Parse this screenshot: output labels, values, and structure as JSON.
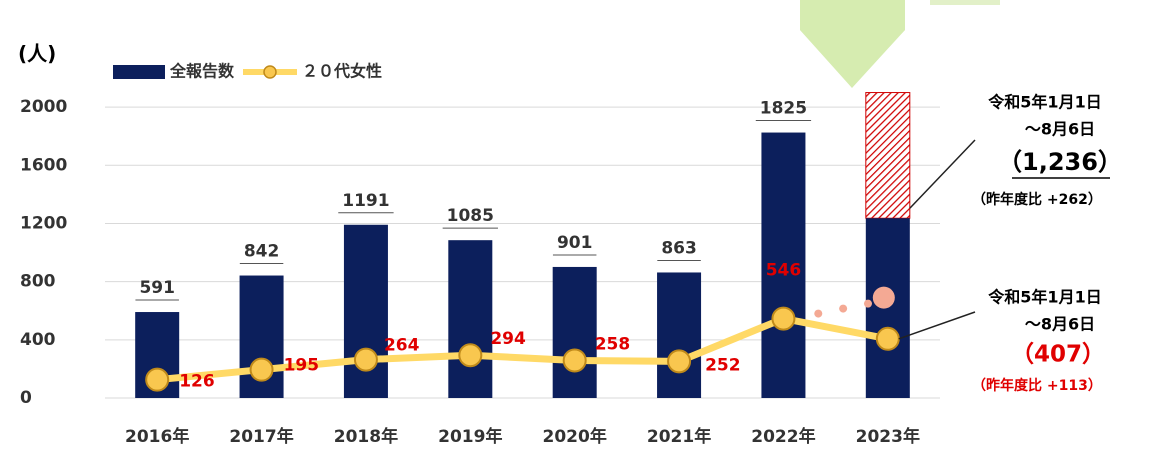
{
  "chart_data": {
    "type": "bar_line",
    "y_label": "(人)",
    "categories": [
      "2016年",
      "2017年",
      "2018年",
      "2019年",
      "2020年",
      "2021年",
      "2022年",
      "2023年"
    ],
    "series": [
      {
        "name": "全報告数",
        "type": "bar",
        "color": "#0c1f5c",
        "values": [
          591,
          842,
          1191,
          1085,
          901,
          863,
          1825,
          1236
        ],
        "value_labels": [
          "591",
          "842",
          "1191",
          "1085",
          "901",
          "863",
          "1825",
          "（1,236）"
        ],
        "projected": [
          null,
          null,
          null,
          null,
          null,
          null,
          null,
          2100
        ]
      },
      {
        "name": "２０代女性",
        "type": "line",
        "color": "#ffd966",
        "values": [
          126,
          195,
          264,
          294,
          258,
          252,
          546,
          407
        ],
        "value_labels": [
          "126",
          "195",
          "264",
          "294",
          "258",
          "252",
          "546",
          "（407）"
        ],
        "projected": [
          null,
          null,
          null,
          null,
          null,
          null,
          null,
          690
        ]
      }
    ],
    "annotations": [
      {
        "lines": [
          "令和5年1月1日",
          "～8月6日"
        ],
        "note": "（昨年度比 +262）"
      },
      {
        "lines": [
          "令和5年1月1日",
          "～8月6日"
        ],
        "note": "（昨年度比 +113）"
      }
    ],
    "ylim": [
      0,
      2200
    ],
    "yticks": [
      0,
      400,
      800,
      1200,
      1600,
      2000
    ],
    "grid": true,
    "legend": "top-left"
  }
}
